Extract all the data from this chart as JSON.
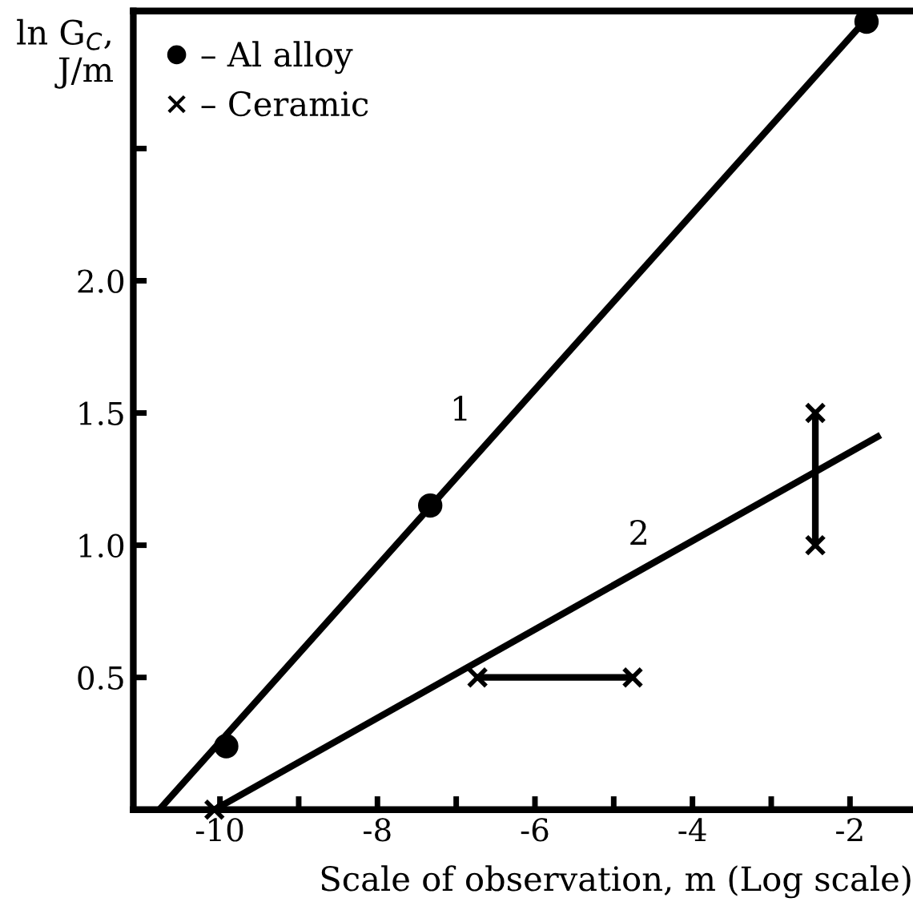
{
  "chart_data": {
    "type": "scatter",
    "xlabel": "Scale of observation, m (Log scale)",
    "ylabel": "ln G$_{C}$,\nJ/m",
    "xlim": [
      -11.1,
      -1.2
    ],
    "ylim": [
      0,
      3.02
    ],
    "xticks": [
      -10,
      {
        "value": -9,
        "label": null
      },
      -8,
      {
        "value": -7,
        "label": null
      },
      -6,
      {
        "value": -5,
        "label": null
      },
      -4,
      {
        "value": -3,
        "label": null
      },
      -2
    ],
    "yticks": [
      0.5,
      {
        "value": 1,
        "label": "1.0"
      },
      1.5,
      {
        "value": 2,
        "label": "2.0"
      },
      {
        "value": 2.5,
        "label": null
      }
    ],
    "legend": "top left",
    "series": [
      {
        "name": "– Al alloy",
        "marker": "circle",
        "color": "#000000",
        "x": [
          -9.92,
          -7.33,
          -1.79
        ],
        "values": [
          0.24,
          1.15,
          2.98
        ]
      },
      {
        "name": "– Ceramic",
        "marker": "cross",
        "color": "#000000",
        "x": [
          -10.07,
          -6.73,
          -4.76,
          -2.44,
          -2.44
        ],
        "values": [
          0,
          0.5,
          0.5,
          1.0,
          1.5
        ]
      },
      {
        "type": "line",
        "color": "#000000",
        "x": [
          -10.77,
          -1.79
        ],
        "values": [
          0,
          2.99
        ]
      },
      {
        "type": "line",
        "color": "#000000",
        "x": [
          -10.07,
          -1.65
        ],
        "values": [
          0,
          1.41
        ]
      },
      {
        "type": "line",
        "color": "#000000",
        "x": [
          -6.73,
          -4.76
        ],
        "values": [
          0.5,
          0.5
        ]
      },
      {
        "type": "line",
        "color": "#000000",
        "x": [
          -2.44,
          -2.44
        ],
        "values": [
          1.0,
          1.5
        ]
      }
    ],
    "annotations": [
      "1",
      "2"
    ]
  }
}
